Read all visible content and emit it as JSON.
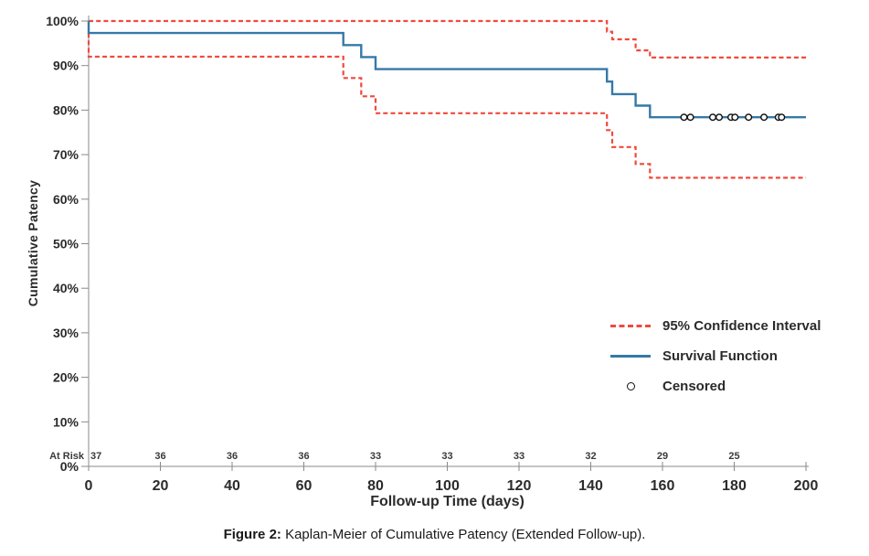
{
  "figure": {
    "caption_label": "Figure 2:",
    "caption_text": " Kaplan-Meier of Cumulative Patency (Extended Follow-up)."
  },
  "legend": {
    "items": [
      {
        "label": "95% Confidence Interval",
        "swatch": "dashed-line"
      },
      {
        "label": "Survival Function",
        "swatch": "solid-line"
      },
      {
        "label": "Censored",
        "swatch": "open-circle"
      }
    ]
  },
  "chart_data": {
    "type": "line",
    "subtype": "kaplan-meier-step",
    "title": "Figure 2: Kaplan-Meier of Cumulative Patency (Extended Follow-up).",
    "xlabel": "Follow-up Time (days)",
    "ylabel": "Cumulative Patency",
    "xlim": [
      0,
      200
    ],
    "ylim": [
      0,
      100
    ],
    "grid": false,
    "legend_position": "middle-right",
    "xticks": [
      0,
      20,
      40,
      60,
      80,
      100,
      120,
      140,
      160,
      180,
      200
    ],
    "yticks": [
      0,
      10,
      20,
      30,
      40,
      50,
      60,
      70,
      80,
      90,
      100
    ],
    "ytick_labels": [
      "0%",
      "10%",
      "20%",
      "30%",
      "40%",
      "50%",
      "60%",
      "70%",
      "80%",
      "90%",
      "100%"
    ],
    "series": [
      {
        "name": "Upper 95% Confidence Interval",
        "key": "upper-ci-line",
        "style": "dashed",
        "color": "#ef4a3d",
        "steps": [
          [
            0,
            100
          ],
          [
            144.5,
            100
          ],
          [
            144.5,
            97.6
          ],
          [
            146,
            97.6
          ],
          [
            146,
            95.9
          ],
          [
            152.5,
            95.9
          ],
          [
            152.5,
            93.4
          ],
          [
            156.5,
            93.4
          ],
          [
            156.5,
            91.8
          ],
          [
            200,
            91.8
          ]
        ]
      },
      {
        "name": "Lower 95% Confidence Interval",
        "key": "lower-ci-line",
        "style": "dashed",
        "color": "#ef4a3d",
        "steps": [
          [
            0,
            97.3
          ],
          [
            0,
            92
          ],
          [
            71,
            92
          ],
          [
            71,
            87.2
          ],
          [
            76,
            87.2
          ],
          [
            76,
            83.1
          ],
          [
            80,
            83.1
          ],
          [
            80,
            79.3
          ],
          [
            144.5,
            79.3
          ],
          [
            144.5,
            75.5
          ],
          [
            146,
            75.5
          ],
          [
            146,
            71.7
          ],
          [
            152.5,
            71.7
          ],
          [
            152.5,
            67.9
          ],
          [
            156.5,
            67.9
          ],
          [
            156.5,
            64.8
          ],
          [
            200,
            64.8
          ]
        ]
      },
      {
        "name": "Survival Function",
        "key": "survival-line",
        "style": "solid",
        "color": "#3579a8",
        "steps": [
          [
            0,
            100
          ],
          [
            0,
            97.3
          ],
          [
            71,
            97.3
          ],
          [
            71,
            94.6
          ],
          [
            76,
            94.6
          ],
          [
            76,
            91.9
          ],
          [
            80,
            91.9
          ],
          [
            80,
            89.2
          ],
          [
            144.5,
            89.2
          ],
          [
            144.5,
            86.4
          ],
          [
            146,
            86.4
          ],
          [
            146,
            83.6
          ],
          [
            152.5,
            83.6
          ],
          [
            152.5,
            81
          ],
          [
            156.5,
            81
          ],
          [
            156.5,
            78.4
          ],
          [
            200,
            78.4
          ]
        ]
      }
    ],
    "censored": {
      "marker": "open-circle",
      "value": 78.4,
      "days": [
        166,
        167.8,
        174,
        175.8,
        179.1,
        180.2,
        184,
        188.3,
        192.3,
        193.2
      ]
    },
    "at_risk": {
      "label": "At Risk",
      "days": [
        0,
        20,
        40,
        60,
        80,
        100,
        120,
        140,
        160,
        180
      ],
      "counts": [
        37,
        36,
        36,
        36,
        33,
        33,
        33,
        32,
        29,
        25
      ]
    },
    "colors": {
      "survival": "#3579a8",
      "confidence_interval": "#ef4a3d",
      "censored_marker": "#111111",
      "axis": "#8a8a8a",
      "text": "#2b2b2b"
    }
  }
}
